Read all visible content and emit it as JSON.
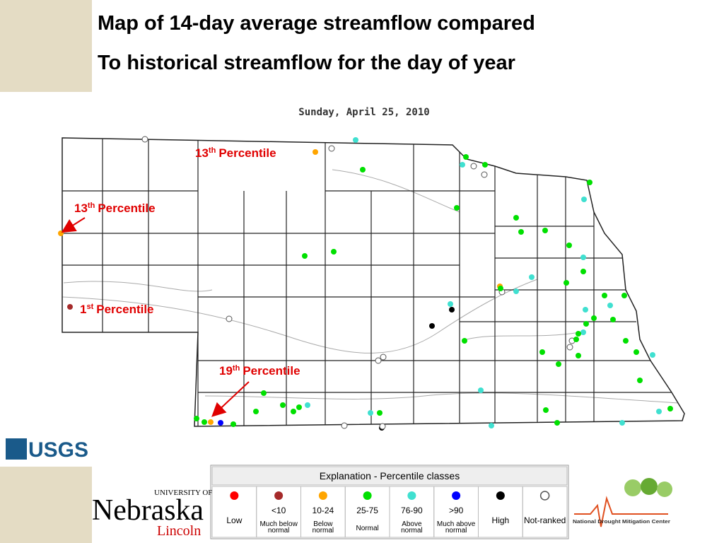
{
  "title_lines": [
    "Map of 14-day average streamflow compared",
    "To historical streamflow for the day of year"
  ],
  "map": {
    "date": "Sunday, April 25, 2010",
    "annotations": [
      {
        "number": "13",
        "suffix": "th",
        "text": "Percentile"
      },
      {
        "number": "13",
        "suffix": "th",
        "text": "Percentile"
      },
      {
        "number": "1",
        "suffix": "st",
        "text": "Percentile"
      },
      {
        "number": "19",
        "suffix": "th",
        "text": "Percentile"
      }
    ]
  },
  "legend": {
    "title": "Explanation - Percentile classes",
    "classes": [
      {
        "range": "Low",
        "color": "#ff0000"
      },
      {
        "range": "<10",
        "description": [
          "Much below",
          "normal"
        ],
        "color": "#a52a2a"
      },
      {
        "range": "10-24",
        "description": [
          "Below",
          "normal"
        ],
        "color": "#ffa500"
      },
      {
        "range": "25-75",
        "description": [
          "Normal"
        ],
        "color": "#00e000"
      },
      {
        "range": "76-90",
        "description": [
          "Above",
          "normal"
        ],
        "color": "#40e0d0"
      },
      {
        "range": ">90",
        "description": [
          "Much above",
          "normal"
        ],
        "color": "#0000ff"
      },
      {
        "range": "High",
        "color": "#000000"
      },
      {
        "range": "Not-ranked",
        "color": "#ffffff"
      }
    ]
  },
  "logos": {
    "usgs": "USGS",
    "university": "UNIVERSITY OF",
    "nebraska": "Nebraska",
    "lincoln": "Lincoln",
    "ndmc": "National Drought Mitigation Center"
  }
}
